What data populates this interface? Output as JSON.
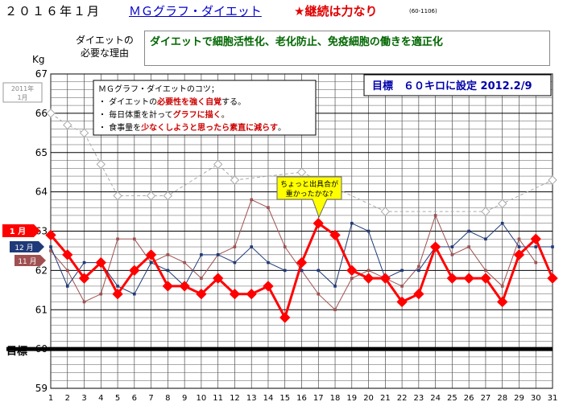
{
  "header": {
    "date": "２０１６年１月",
    "link": "ＭＧグラフ・ダイエット",
    "motto": "★継続は力なり",
    "code": "(60-1106)"
  },
  "reason": {
    "label_line1": "ダイエットの",
    "label_line2": "必要な理由",
    "text": "ダイエットで細胞活性化、老化防止、免疫細胞の働きを適正化"
  },
  "tips": {
    "title": "ＭＧグラフ・ダイエットのコツ；",
    "line1_a": "・ ダイエットの",
    "line1_b": "必要性を強く自覚",
    "line1_c": "する。",
    "line2_a": "・ 毎日体重を計って",
    "line2_b": "グラフに描く",
    "line2_c": "。",
    "line3_a": "・ 食事量を",
    "line3_b": "少なくしようと思ったら素直に減らす",
    "line3_c": "。"
  },
  "goal_box": "目標　６０キロに設定 2012.2/9",
  "callout": {
    "line1": "ちょっと出具合が",
    "line2": "重かったかな?"
  },
  "legend": {
    "prev_year_line1": "2011年",
    "prev_year_line2": "1月",
    "jan": "1 月",
    "dec": "12 月",
    "nov": "11 月"
  },
  "colors": {
    "jan": "#ff0000",
    "dec": "#1f3a78",
    "nov": "#a05050",
    "prev_year": "#aaaaaa",
    "goal": "#000000",
    "reason_text": "#006600"
  },
  "chart_data": {
    "type": "line",
    "unit": "Kg",
    "goal_label": "目標",
    "goal_value": 60,
    "ylim": [
      59,
      67
    ],
    "yticks": [
      59,
      60,
      61,
      62,
      63,
      64,
      65,
      66,
      67
    ],
    "x": [
      1,
      2,
      3,
      4,
      5,
      6,
      7,
      8,
      9,
      10,
      11,
      12,
      13,
      14,
      15,
      16,
      17,
      18,
      19,
      20,
      21,
      22,
      23,
      24,
      25,
      26,
      27,
      28,
      29,
      30,
      31
    ],
    "series": [
      {
        "name": "1 月",
        "key": "jan",
        "values": [
          62.9,
          62.4,
          61.8,
          62.2,
          61.4,
          62.0,
          62.4,
          61.6,
          61.6,
          61.4,
          61.8,
          61.4,
          61.4,
          61.6,
          60.8,
          62.2,
          63.2,
          62.9,
          62.0,
          61.8,
          61.8,
          61.2,
          61.4,
          62.6,
          61.8,
          61.8,
          61.8,
          61.2,
          62.4,
          62.8,
          61.8
        ]
      },
      {
        "name": "12 月",
        "key": "dec",
        "values": [
          62.6,
          61.6,
          62.2,
          62.2,
          61.6,
          61.4,
          62.2,
          62.0,
          61.6,
          62.4,
          62.4,
          62.2,
          62.6,
          62.2,
          62.0,
          62.0,
          62.0,
          61.6,
          63.2,
          63.0,
          61.8,
          62.0,
          62.0,
          62.6,
          62.6,
          63.0,
          62.8,
          63.2,
          62.6,
          62.6,
          62.6
        ]
      },
      {
        "name": "11 月",
        "key": "nov",
        "values": [
          62.5,
          62.0,
          61.2,
          61.4,
          62.8,
          62.8,
          62.2,
          62.4,
          62.2,
          61.8,
          62.4,
          62.6,
          63.8,
          63.6,
          62.6,
          62.0,
          61.4,
          61.0,
          61.8,
          62.0,
          61.8,
          61.6,
          62.1,
          63.4,
          62.4,
          62.6,
          62.0,
          61.6,
          62.8,
          62.2,
          null
        ]
      },
      {
        "name": "2011年 1月",
        "key": "prev_year",
        "values": [
          66.0,
          65.7,
          65.5,
          64.7,
          63.9,
          null,
          63.9,
          63.9,
          null,
          null,
          64.7,
          64.3,
          null,
          null,
          null,
          64.5,
          64.3,
          null,
          null,
          null,
          63.5,
          null,
          null,
          null,
          null,
          null,
          63.5,
          63.7,
          null,
          null,
          64.3
        ]
      }
    ]
  }
}
